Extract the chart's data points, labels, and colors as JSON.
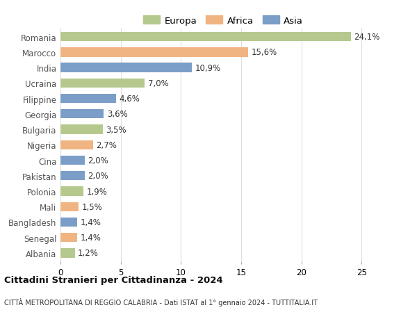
{
  "countries": [
    "Romania",
    "Marocco",
    "India",
    "Ucraina",
    "Filippine",
    "Georgia",
    "Bulgaria",
    "Nigeria",
    "Cina",
    "Pakistan",
    "Polonia",
    "Mali",
    "Bangladesh",
    "Senegal",
    "Albania"
  ],
  "values": [
    24.1,
    15.6,
    10.9,
    7.0,
    4.6,
    3.6,
    3.5,
    2.7,
    2.0,
    2.0,
    1.9,
    1.5,
    1.4,
    1.4,
    1.2
  ],
  "labels": [
    "24,1%",
    "15,6%",
    "10,9%",
    "7,0%",
    "4,6%",
    "3,6%",
    "3,5%",
    "2,7%",
    "2,0%",
    "2,0%",
    "1,9%",
    "1,5%",
    "1,4%",
    "1,4%",
    "1,2%"
  ],
  "continents": [
    "Europa",
    "Africa",
    "Asia",
    "Europa",
    "Asia",
    "Asia",
    "Europa",
    "Africa",
    "Asia",
    "Asia",
    "Europa",
    "Africa",
    "Asia",
    "Africa",
    "Europa"
  ],
  "colors": {
    "Europa": "#b5c98e",
    "Africa": "#f0b482",
    "Asia": "#7b9ec8"
  },
  "title": "Cittadini Stranieri per Cittadinanza - 2024",
  "subtitle": "CITTÀ METROPOLITANA DI REGGIO CALABRIA - Dati ISTAT al 1° gennaio 2024 - TUTTITALIA.IT",
  "xlim": [
    0,
    27
  ],
  "xticks": [
    0,
    5,
    10,
    15,
    20,
    25
  ],
  "background_color": "#ffffff",
  "grid_color": "#dddddd",
  "label_fontsize": 8.5,
  "ytick_fontsize": 8.5,
  "xtick_fontsize": 8.5,
  "bar_height": 0.6,
  "legend_fontsize": 9.5
}
